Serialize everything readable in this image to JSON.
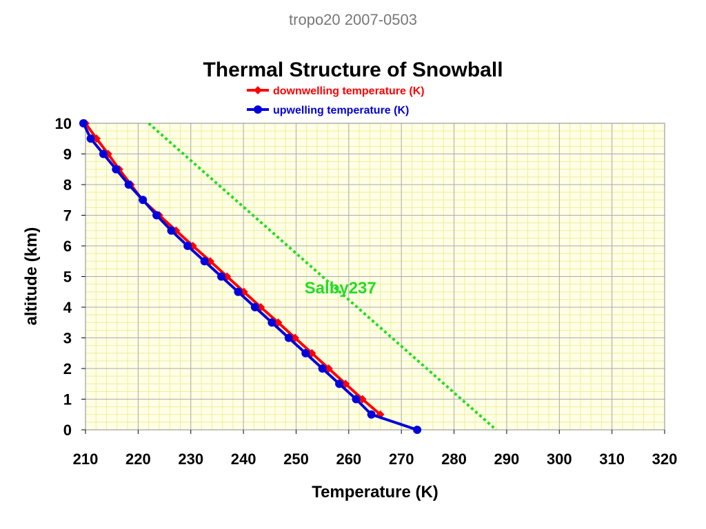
{
  "header": "tropo20 2007-0503",
  "colors": {
    "downwelling": "#ff0000",
    "upwelling": "#0000dd",
    "reference": "#22dd22",
    "plot_bg": "#ffffe6",
    "grid_major": "#aaaaaa",
    "grid_minor": "#eeee99"
  },
  "chart_data": {
    "type": "line",
    "title": "Thermal Structure of Snowball",
    "xlabel": "Temperature (K)",
    "ylabel": "altitude (km)",
    "xlim": [
      210,
      320
    ],
    "ylim": [
      0,
      10
    ],
    "x_ticks": [
      210,
      220,
      230,
      240,
      250,
      260,
      270,
      280,
      290,
      300,
      310,
      320
    ],
    "y_ticks": [
      0,
      1,
      2,
      3,
      4,
      5,
      6,
      7,
      8,
      9,
      10
    ],
    "grid": true,
    "legend_position": "top-center",
    "series": [
      {
        "name": "downwelling temperature (K)",
        "marker": "diamond",
        "color": "#ff0000",
        "points": [
          [
            266.0,
            0.5
          ],
          [
            262.6,
            1.0
          ],
          [
            259.4,
            1.5
          ],
          [
            256.2,
            2.0
          ],
          [
            253.0,
            2.5
          ],
          [
            249.8,
            3.0
          ],
          [
            246.6,
            3.5
          ],
          [
            243.3,
            4.0
          ],
          [
            240.1,
            4.5
          ],
          [
            236.9,
            5.0
          ],
          [
            233.7,
            5.5
          ],
          [
            230.4,
            6.0
          ],
          [
            227.2,
            6.5
          ],
          [
            224.0,
            7.0
          ],
          [
            220.8,
            7.5
          ],
          [
            218.6,
            8.0
          ],
          [
            216.4,
            8.5
          ],
          [
            214.3,
            9.0
          ],
          [
            212.1,
            9.5
          ],
          [
            210.0,
            10.0
          ]
        ]
      },
      {
        "name": "upwelling temperature (K)",
        "marker": "circle",
        "color": "#0000dd",
        "points": [
          [
            273.0,
            0.0
          ],
          [
            264.3,
            0.5
          ],
          [
            261.4,
            1.0
          ],
          [
            258.2,
            1.5
          ],
          [
            255.0,
            2.0
          ],
          [
            251.8,
            2.5
          ],
          [
            248.6,
            3.0
          ],
          [
            245.4,
            3.5
          ],
          [
            242.2,
            4.0
          ],
          [
            239.0,
            4.5
          ],
          [
            235.8,
            5.0
          ],
          [
            232.6,
            5.5
          ],
          [
            229.4,
            6.0
          ],
          [
            226.3,
            6.5
          ],
          [
            223.5,
            7.0
          ],
          [
            220.9,
            7.5
          ],
          [
            218.2,
            8.0
          ],
          [
            215.8,
            8.5
          ],
          [
            213.4,
            9.0
          ],
          [
            211.0,
            9.5
          ],
          [
            209.6,
            10.0
          ]
        ]
      },
      {
        "name": "",
        "style": "dotted",
        "color": "#22dd22",
        "points": [
          [
            222.0,
            10.0
          ],
          [
            288.0,
            0.0
          ]
        ]
      }
    ],
    "annotations": [
      {
        "text": "Salby237",
        "x": 251.6,
        "y": 4.45,
        "color": "#22dd22"
      }
    ]
  }
}
